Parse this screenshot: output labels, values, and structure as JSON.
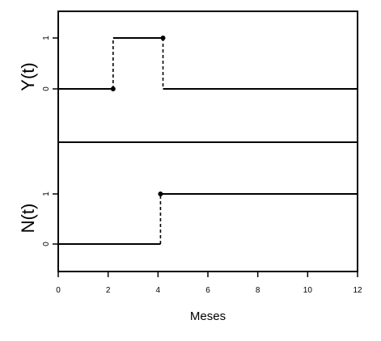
{
  "chart_data": [
    {
      "type": "line",
      "step": true,
      "ylabel": "Y(t)",
      "xlim": [
        0,
        12
      ],
      "yticks": [
        0,
        1
      ],
      "ytick_labels": [
        "0",
        "1"
      ],
      "segments": [
        {
          "x": [
            0,
            2.2
          ],
          "y": 0
        },
        {
          "x": [
            2.2,
            4.2
          ],
          "y": 1
        },
        {
          "x": [
            4.2,
            12
          ],
          "y": 0
        }
      ],
      "jumps": [
        {
          "x": 2.2,
          "from": 0,
          "to": 1
        },
        {
          "x": 4.2,
          "from": 1,
          "to": 0
        }
      ],
      "points": [
        {
          "x": 2.2,
          "y": 0
        },
        {
          "x": 4.2,
          "y": 1
        }
      ]
    },
    {
      "type": "line",
      "step": true,
      "ylabel": "N(t)",
      "xlabel": "Meses",
      "xlim": [
        0,
        12
      ],
      "xticks": [
        0,
        2,
        4,
        6,
        8,
        10,
        12
      ],
      "xtick_labels": [
        "0",
        "2",
        "4",
        "6",
        "8",
        "10",
        "12"
      ],
      "yticks": [
        0,
        1
      ],
      "ytick_labels": [
        "0",
        "1"
      ],
      "segments": [
        {
          "x": [
            0,
            4.1
          ],
          "y": 0
        },
        {
          "x": [
            4.1,
            12
          ],
          "y": 1
        }
      ],
      "jumps": [
        {
          "x": 4.1,
          "from": 0,
          "to": 1
        }
      ],
      "points": [
        {
          "x": 4.1,
          "y": 1
        }
      ]
    }
  ]
}
